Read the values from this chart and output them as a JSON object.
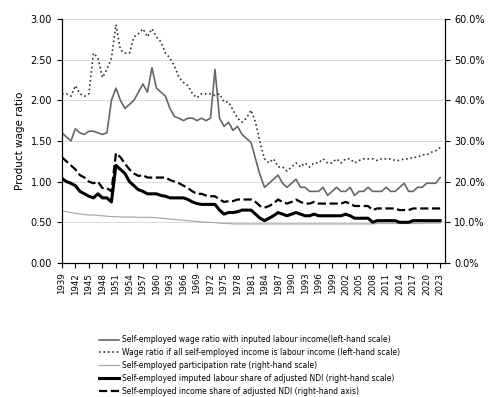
{
  "years": [
    1939,
    1940,
    1941,
    1942,
    1943,
    1944,
    1945,
    1946,
    1947,
    1948,
    1949,
    1950,
    1951,
    1952,
    1953,
    1954,
    1955,
    1956,
    1957,
    1958,
    1959,
    1960,
    1961,
    1962,
    1963,
    1964,
    1965,
    1966,
    1967,
    1968,
    1969,
    1970,
    1971,
    1972,
    1973,
    1974,
    1975,
    1976,
    1977,
    1978,
    1979,
    1980,
    1981,
    1982,
    1983,
    1984,
    1985,
    1986,
    1987,
    1988,
    1989,
    1990,
    1991,
    1992,
    1993,
    1994,
    1995,
    1996,
    1997,
    1998,
    1999,
    2000,
    2001,
    2002,
    2003,
    2004,
    2005,
    2006,
    2007,
    2008,
    2009,
    2010,
    2011,
    2012,
    2013,
    2014,
    2015,
    2016,
    2017,
    2018,
    2019,
    2020,
    2021,
    2022,
    2023
  ],
  "series1_dark_solid": [
    1.6,
    1.55,
    1.5,
    1.65,
    1.6,
    1.58,
    1.62,
    1.62,
    1.6,
    1.58,
    1.6,
    2.0,
    2.15,
    2.0,
    1.9,
    1.95,
    2.0,
    2.1,
    2.2,
    2.1,
    2.4,
    2.15,
    2.1,
    2.05,
    1.9,
    1.8,
    1.78,
    1.75,
    1.78,
    1.78,
    1.75,
    1.78,
    1.75,
    1.78,
    2.38,
    1.78,
    1.68,
    1.73,
    1.63,
    1.68,
    1.58,
    1.53,
    1.48,
    1.28,
    1.08,
    0.93,
    0.98,
    1.03,
    1.08,
    0.98,
    0.93,
    0.98,
    1.03,
    0.93,
    0.93,
    0.88,
    0.88,
    0.88,
    0.93,
    0.83,
    0.88,
    0.93,
    0.88,
    0.88,
    0.93,
    0.83,
    0.88,
    0.88,
    0.93,
    0.88,
    0.88,
    0.88,
    0.93,
    0.88,
    0.88,
    0.93,
    0.98,
    0.88,
    0.88,
    0.93,
    0.93,
    0.98,
    0.98,
    0.98,
    1.05
  ],
  "series2_dotted": [
    2.08,
    2.08,
    2.05,
    2.18,
    2.08,
    2.05,
    2.08,
    2.58,
    2.52,
    2.28,
    2.38,
    2.52,
    2.93,
    2.62,
    2.58,
    2.58,
    2.78,
    2.82,
    2.88,
    2.78,
    2.88,
    2.78,
    2.72,
    2.58,
    2.52,
    2.42,
    2.28,
    2.22,
    2.18,
    2.08,
    2.03,
    2.08,
    2.08,
    2.08,
    2.06,
    2.08,
    1.98,
    1.98,
    1.88,
    1.78,
    1.73,
    1.78,
    1.88,
    1.73,
    1.48,
    1.28,
    1.23,
    1.28,
    1.18,
    1.18,
    1.13,
    1.18,
    1.23,
    1.18,
    1.23,
    1.18,
    1.23,
    1.23,
    1.28,
    1.23,
    1.23,
    1.28,
    1.23,
    1.28,
    1.28,
    1.23,
    1.26,
    1.28,
    1.28,
    1.28,
    1.26,
    1.28,
    1.28,
    1.28,
    1.26,
    1.26,
    1.28,
    1.28,
    1.3,
    1.3,
    1.33,
    1.33,
    1.36,
    1.38,
    1.42
  ],
  "series3_gray_solid": [
    0.128,
    0.126,
    0.124,
    0.122,
    0.12,
    0.119,
    0.118,
    0.118,
    0.117,
    0.116,
    0.115,
    0.114,
    0.114,
    0.113,
    0.113,
    0.113,
    0.113,
    0.112,
    0.112,
    0.112,
    0.112,
    0.111,
    0.11,
    0.109,
    0.108,
    0.107,
    0.106,
    0.105,
    0.104,
    0.103,
    0.102,
    0.101,
    0.1,
    0.1,
    0.099,
    0.098,
    0.097,
    0.097,
    0.096,
    0.096,
    0.096,
    0.096,
    0.096,
    0.096,
    0.096,
    0.096,
    0.096,
    0.096,
    0.096,
    0.096,
    0.096,
    0.096,
    0.096,
    0.096,
    0.096,
    0.096,
    0.096,
    0.096,
    0.096,
    0.096,
    0.096,
    0.096,
    0.096,
    0.096,
    0.096,
    0.096,
    0.096,
    0.096,
    0.096,
    0.096,
    0.097,
    0.097,
    0.097,
    0.097,
    0.097,
    0.097,
    0.097,
    0.097,
    0.097,
    0.097,
    0.097,
    0.098,
    0.098,
    0.098,
    0.098
  ],
  "series4_black_solid": [
    0.208,
    0.2,
    0.196,
    0.19,
    0.176,
    0.17,
    0.164,
    0.16,
    0.17,
    0.16,
    0.16,
    0.15,
    0.24,
    0.23,
    0.22,
    0.2,
    0.19,
    0.18,
    0.176,
    0.17,
    0.17,
    0.17,
    0.166,
    0.164,
    0.16,
    0.16,
    0.16,
    0.16,
    0.156,
    0.15,
    0.146,
    0.144,
    0.144,
    0.144,
    0.144,
    0.13,
    0.12,
    0.124,
    0.124,
    0.126,
    0.13,
    0.13,
    0.13,
    0.12,
    0.11,
    0.104,
    0.11,
    0.116,
    0.124,
    0.12,
    0.116,
    0.12,
    0.124,
    0.12,
    0.116,
    0.116,
    0.12,
    0.116,
    0.116,
    0.116,
    0.116,
    0.116,
    0.116,
    0.12,
    0.116,
    0.11,
    0.11,
    0.11,
    0.11,
    0.1,
    0.104,
    0.104,
    0.104,
    0.104,
    0.104,
    0.1,
    0.1,
    0.1,
    0.104,
    0.104,
    0.104,
    0.104,
    0.104,
    0.104,
    0.104
  ],
  "series5_black_dashed": [
    0.26,
    0.25,
    0.24,
    0.23,
    0.216,
    0.21,
    0.2,
    0.196,
    0.2,
    0.184,
    0.184,
    0.176,
    0.27,
    0.26,
    0.244,
    0.23,
    0.22,
    0.214,
    0.216,
    0.21,
    0.21,
    0.21,
    0.21,
    0.21,
    0.204,
    0.2,
    0.196,
    0.19,
    0.184,
    0.176,
    0.17,
    0.17,
    0.166,
    0.164,
    0.164,
    0.156,
    0.15,
    0.152,
    0.152,
    0.156,
    0.156,
    0.156,
    0.156,
    0.15,
    0.14,
    0.136,
    0.14,
    0.146,
    0.156,
    0.15,
    0.146,
    0.15,
    0.156,
    0.15,
    0.146,
    0.146,
    0.15,
    0.146,
    0.146,
    0.146,
    0.146,
    0.146,
    0.146,
    0.15,
    0.146,
    0.14,
    0.14,
    0.14,
    0.14,
    0.13,
    0.134,
    0.134,
    0.134,
    0.134,
    0.134,
    0.13,
    0.13,
    0.13,
    0.134,
    0.134,
    0.134,
    0.134,
    0.134,
    0.134,
    0.134
  ],
  "ylabel_left": "Product wage ratio",
  "ylim_left": [
    0.0,
    3.0
  ],
  "yticks_left": [
    0.0,
    0.5,
    1.0,
    1.5,
    2.0,
    2.5,
    3.0
  ],
  "ylim_right": [
    0.0,
    0.6
  ],
  "yticks_right": [
    0.0,
    0.1,
    0.2,
    0.3,
    0.4,
    0.5,
    0.6
  ],
  "legend_labels": [
    "Self-employed wage ratio with inputed labour income(left-hand scale)",
    "Wage ratio if all self-employed income is labour income (left-hand scale)",
    "Self-employed participation rate (right-hand scale)",
    "Self-employed imputed labour share of adjusted NDI (right-hand scale)",
    "Self-employed income share of adjusted NDI (right-hand axis)"
  ],
  "line_colors": [
    "#666666",
    "#333333",
    "#aaaaaa",
    "#000000",
    "#000000"
  ],
  "line_styles": [
    "-",
    ":",
    "-",
    "-",
    "--"
  ],
  "line_widths": [
    1.2,
    1.2,
    0.9,
    2.2,
    1.6
  ],
  "background_color": "#ffffff",
  "grid_color": "#cccccc"
}
